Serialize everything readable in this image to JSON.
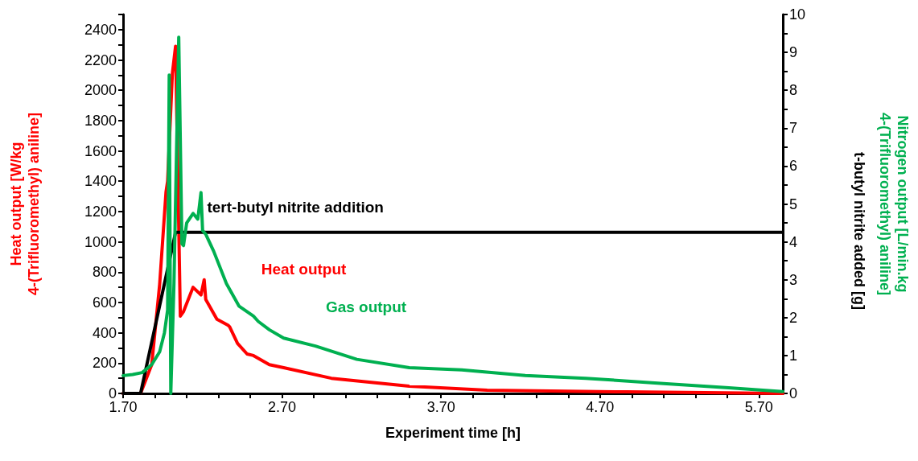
{
  "chart_data": {
    "type": "line",
    "xlabel": "Experiment time [h]",
    "ylabel": "Heat output [W/kg\n4-(Trifluoromethyl) aniline]",
    "y2label": "Nitrogen output [L/min.kg\n4-(Trifluoromethyl) aniline]",
    "annotations": [
      "t-butyl nitrite added [g]"
    ],
    "xlim": [
      1.7,
      5.85
    ],
    "xticks": [
      {
        "value": 1.7,
        "label": "1.70"
      },
      {
        "value": 1.9,
        "label": null
      },
      {
        "value": 2.1,
        "label": null
      },
      {
        "value": 2.3,
        "label": null
      },
      {
        "value": 2.5,
        "label": null
      },
      {
        "value": 2.7,
        "label": "2.70"
      },
      {
        "value": 2.9,
        "label": null
      },
      {
        "value": 3.1,
        "label": null
      },
      {
        "value": 3.3,
        "label": null
      },
      {
        "value": 3.5,
        "label": null
      },
      {
        "value": 3.7,
        "label": "3.70"
      },
      {
        "value": 3.9,
        "label": null
      },
      {
        "value": 4.1,
        "label": null
      },
      {
        "value": 4.3,
        "label": null
      },
      {
        "value": 4.5,
        "label": null
      },
      {
        "value": 4.7,
        "label": "4.70"
      },
      {
        "value": 4.9,
        "label": null
      },
      {
        "value": 5.1,
        "label": null
      },
      {
        "value": 5.3,
        "label": null
      },
      {
        "value": 5.5,
        "label": null
      },
      {
        "value": 5.7,
        "label": "5.70"
      }
    ],
    "ylim": [
      0,
      2500
    ],
    "yticks": [
      0,
      {
        "value": 100,
        "label": null
      },
      200,
      {
        "value": 300,
        "label": null
      },
      400,
      {
        "value": 500,
        "label": null
      },
      600,
      {
        "value": 700,
        "label": null
      },
      800,
      {
        "value": 900,
        "label": null
      },
      1000,
      {
        "value": 1100,
        "label": null
      },
      1200,
      {
        "value": 1300,
        "label": null
      },
      1400,
      {
        "value": 1500,
        "label": null
      },
      1600,
      {
        "value": 1700,
        "label": null
      },
      1800,
      {
        "value": 1900,
        "label": null
      },
      2000,
      {
        "value": 2100,
        "label": null
      },
      2200,
      {
        "value": 2300,
        "label": null
      },
      2400,
      {
        "value": 2500,
        "label": null
      }
    ],
    "y2lim": [
      0,
      10
    ],
    "y2ticks": [
      0,
      {
        "value": 0.5,
        "label": null
      },
      1,
      {
        "value": 1.5,
        "label": null
      },
      2,
      {
        "value": 2.5,
        "label": null
      },
      3,
      {
        "value": 3.5,
        "label": null
      },
      4,
      {
        "value": 4.5,
        "label": null
      },
      5,
      {
        "value": 5.5,
        "label": null
      },
      6,
      {
        "value": 6.5,
        "label": null
      },
      7,
      {
        "value": 7.5,
        "label": null
      },
      8,
      {
        "value": 8.5,
        "label": null
      },
      9,
      {
        "value": 9.5,
        "label": null
      },
      10
    ],
    "grid": false,
    "legend": false,
    "marker": "none",
    "series": [
      {
        "name": "Heat output",
        "color": "#ff0000",
        "x": [
          1.7,
          1.81,
          1.88,
          1.93,
          1.97,
          1.98,
          2.01,
          2.03,
          2.06,
          2.08,
          2.14,
          2.19,
          2.21,
          2.22,
          2.29,
          2.36,
          2.37,
          2.42,
          2.48,
          2.52,
          2.62,
          2.71,
          3.01,
          3.5,
          3.99,
          4.87,
          5.85
        ],
        "values": [
          0,
          0,
          190,
          720,
          1330,
          1400,
          2110,
          2290,
          510,
          540,
          700,
          650,
          750,
          620,
          490,
          450,
          440,
          330,
          260,
          250,
          190,
          170,
          100,
          48,
          21,
          10,
          0
        ]
      },
      {
        "name": "tert-butyl nitrite addition",
        "color": "#000000",
        "axis": "y2",
        "x": [
          1.7,
          1.81,
          2.03,
          5.85
        ],
        "values": [
          0,
          0,
          4.25,
          4.25
        ]
      },
      {
        "name": "Gas output",
        "color": "#00b050",
        "axis": "y2",
        "x": [
          1.7,
          1.76,
          1.82,
          1.88,
          1.93,
          1.96,
          1.98,
          1.99,
          2.0,
          2.02,
          2.05,
          2.07,
          2.08,
          2.1,
          2.14,
          2.17,
          2.19,
          2.2,
          2.22,
          2.27,
          2.35,
          2.43,
          2.52,
          2.55,
          2.62,
          2.71,
          2.91,
          3.17,
          3.5,
          3.83,
          4.23,
          4.61,
          5.1,
          5.51,
          5.85
        ],
        "values": [
          0.47,
          0.5,
          0.55,
          0.76,
          1.1,
          1.6,
          2.2,
          8.4,
          0,
          2.9,
          9.4,
          3.95,
          3.9,
          4.5,
          4.75,
          4.6,
          5.3,
          4.3,
          4.2,
          3.75,
          2.9,
          2.3,
          2.04,
          1.9,
          1.68,
          1.46,
          1.25,
          0.9,
          0.68,
          0.62,
          0.47,
          0.4,
          0.26,
          0.15,
          0.05
        ]
      }
    ]
  }
}
